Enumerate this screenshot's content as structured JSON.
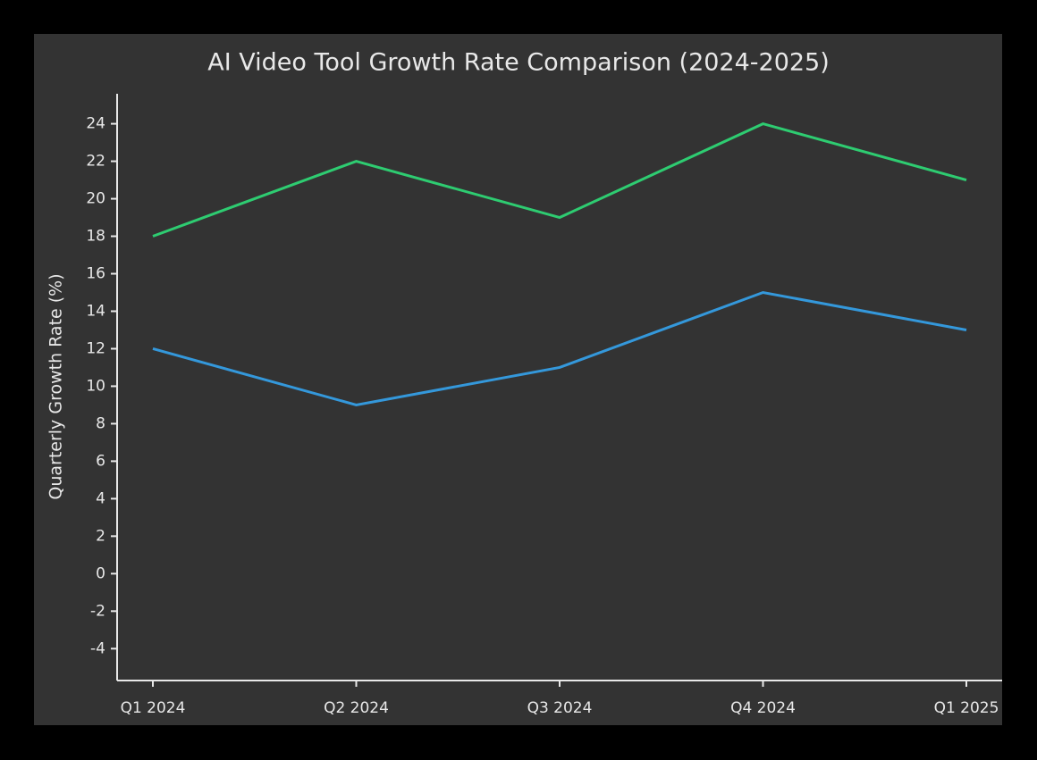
{
  "chart_data": {
    "type": "line",
    "title": "AI Video Tool Growth Rate Comparison (2024-2025)",
    "y_label": "Quarterly Growth Rate (%)",
    "categories": [
      "Q1 2024",
      "Q2 2024",
      "Q3 2024",
      "Q4 2024",
      "Q1 2025"
    ],
    "series": [
      {
        "color": "#2ecc71",
        "values": [
          18,
          22,
          19,
          24,
          21
        ]
      },
      {
        "color": "#3498db",
        "values": [
          12,
          9,
          11,
          15,
          13
        ]
      }
    ],
    "ylim": [
      -5.7,
      25.6
    ],
    "yticks": [
      -4,
      -2,
      0,
      2,
      4,
      6,
      8,
      10,
      12,
      14,
      16,
      18,
      20,
      22,
      24
    ],
    "grid": false
  }
}
